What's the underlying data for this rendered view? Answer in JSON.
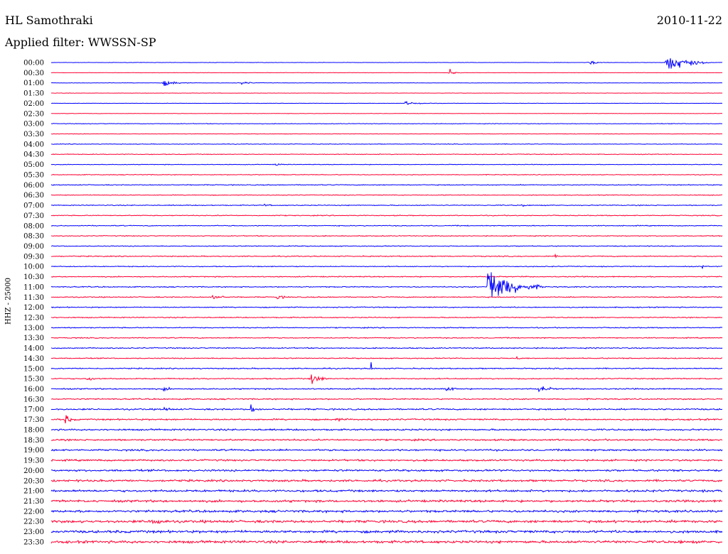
{
  "header": {
    "station": "HL Samothraki",
    "date": "2010-11-22",
    "filter": "Applied filter: WWSSN-SP"
  },
  "axis_label": "HHZ - 25000",
  "colors": {
    "blue": "#0000ff",
    "red": "#ff0033",
    "text": "#000000"
  },
  "chart_data": {
    "type": "line",
    "times": [
      "00:00",
      "00:30",
      "01:00",
      "01:30",
      "02:00",
      "02:30",
      "03:00",
      "03:30",
      "04:00",
      "04:30",
      "05:00",
      "05:30",
      "06:00",
      "06:30",
      "07:00",
      "07:30",
      "08:00",
      "08:30",
      "09:00",
      "09:30",
      "10:00",
      "10:30",
      "11:00",
      "11:30",
      "12:00",
      "12:30",
      "13:00",
      "13:30",
      "14:00",
      "14:30",
      "15:00",
      "15:30",
      "16:00",
      "16:30",
      "17:00",
      "17:30",
      "18:00",
      "18:30",
      "19:00",
      "19:30",
      "20:00",
      "20:30",
      "21:00",
      "21:30",
      "22:00",
      "22:30",
      "23:00",
      "23:30"
    ],
    "noise_level": [
      0.3,
      0.3,
      0.3,
      0.3,
      0.3,
      0.3,
      0.5,
      0.4,
      0.5,
      0.6,
      0.5,
      0.6,
      0.7,
      0.6,
      0.7,
      0.7,
      0.7,
      0.7,
      0.7,
      0.8,
      0.7,
      0.8,
      0.8,
      0.8,
      0.8,
      0.8,
      0.8,
      0.8,
      0.9,
      0.8,
      0.9,
      0.9,
      1.0,
      1.0,
      1.2,
      1.2,
      1.3,
      1.3,
      1.4,
      1.4,
      1.5,
      1.6,
      1.7,
      1.8,
      1.8,
      2.0,
      2.0,
      2.0
    ],
    "events": [
      {
        "row": 0,
        "minute": 27.5,
        "amplitude": 20,
        "duration": 2.0
      },
      {
        "row": 0,
        "minute": 24.0,
        "amplitude": 5,
        "duration": 1.0
      },
      {
        "row": 1,
        "minute": 17.8,
        "amplitude": 6,
        "duration": 0.6
      },
      {
        "row": 2,
        "minute": 5.0,
        "amplitude": 6,
        "duration": 1.4
      },
      {
        "row": 2,
        "minute": 8.5,
        "amplitude": 3,
        "duration": 1.0
      },
      {
        "row": 4,
        "minute": 15.8,
        "amplitude": 3,
        "duration": 2.0
      },
      {
        "row": 10,
        "minute": 10.0,
        "amplitude": 3,
        "duration": 0.8
      },
      {
        "row": 14,
        "minute": 21.0,
        "amplitude": 3,
        "duration": 0.8
      },
      {
        "row": 14,
        "minute": 9.5,
        "amplitude": 2,
        "duration": 1.5
      },
      {
        "row": 19,
        "minute": 22.5,
        "amplitude": 3,
        "duration": 0.4
      },
      {
        "row": 20,
        "minute": 29.1,
        "amplitude": 3,
        "duration": 0.4
      },
      {
        "row": 22,
        "minute": 19.5,
        "amplitude": 40,
        "duration": 2.5
      },
      {
        "row": 23,
        "minute": 7.2,
        "amplitude": 6,
        "duration": 1.2
      },
      {
        "row": 23,
        "minute": 10.1,
        "amplitude": 4,
        "duration": 1.0
      },
      {
        "row": 29,
        "minute": 20.8,
        "amplitude": 3,
        "duration": 1.0
      },
      {
        "row": 30,
        "minute": 14.3,
        "amplitude": 10,
        "duration": 0.2
      },
      {
        "row": 31,
        "minute": 11.6,
        "amplitude": 12,
        "duration": 1.0
      },
      {
        "row": 31,
        "minute": 1.6,
        "amplitude": 5,
        "duration": 1.0
      },
      {
        "row": 32,
        "minute": 5.0,
        "amplitude": 4,
        "duration": 1.0
      },
      {
        "row": 32,
        "minute": 17.6,
        "amplitude": 8,
        "duration": 0.8
      },
      {
        "row": 32,
        "minute": 21.8,
        "amplitude": 7,
        "duration": 1.2
      },
      {
        "row": 34,
        "minute": 8.9,
        "amplitude": 10,
        "duration": 0.6
      },
      {
        "row": 34,
        "minute": 5.0,
        "amplitude": 5,
        "duration": 1.0
      },
      {
        "row": 35,
        "minute": 0.6,
        "amplitude": 9,
        "duration": 0.8
      },
      {
        "row": 35,
        "minute": 12.7,
        "amplitude": 4,
        "duration": 1.0
      },
      {
        "row": 45,
        "minute": 4.4,
        "amplitude": 11,
        "duration": 1.4
      },
      {
        "row": 47,
        "minute": 28.0,
        "amplitude": 6,
        "duration": 0.6
      }
    ]
  }
}
